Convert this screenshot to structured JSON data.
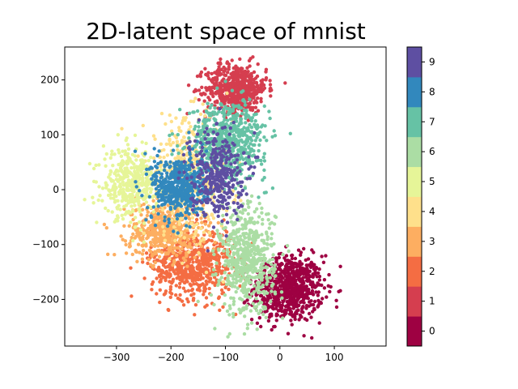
{
  "chart_data": {
    "type": "scatter",
    "title": "2D-latent space of mnist",
    "xlabel": "",
    "ylabel": "",
    "xlim": [
      -395,
      195
    ],
    "ylim": [
      -285,
      260
    ],
    "xticks": [
      -300,
      -200,
      -100,
      0,
      100
    ],
    "yticks": [
      -200,
      -100,
      0,
      100,
      200
    ],
    "grid": false,
    "colorbar": {
      "label": "",
      "ticks": [
        "0",
        "1",
        "2",
        "3",
        "4",
        "5",
        "6",
        "7",
        "8",
        "9"
      ],
      "colors": [
        "#9e0142",
        "#d53e4f",
        "#f46d43",
        "#fdae61",
        "#fee08b",
        "#e6f598",
        "#abdda4",
        "#66c2a5",
        "#3288bd",
        "#5e4fa2"
      ]
    },
    "clusters": [
      {
        "digit": 0,
        "center": [
          15,
          -180
        ],
        "spread": [
          32,
          30
        ],
        "count": 750
      },
      {
        "digit": 1,
        "center": [
          -80,
          185
        ],
        "spread": [
          28,
          22
        ],
        "count": 600
      },
      {
        "digit": 2,
        "center": [
          -160,
          -135
        ],
        "spread": [
          38,
          32
        ],
        "count": 650
      },
      {
        "digit": 3,
        "center": [
          -210,
          -75
        ],
        "spread": [
          35,
          25
        ],
        "count": 500
      },
      {
        "digit": 4,
        "center": [
          -170,
          20
        ],
        "spread": [
          40,
          55
        ],
        "count": 450
      },
      {
        "digit": 5,
        "center": [
          -275,
          10
        ],
        "spread": [
          25,
          30
        ],
        "count": 380
      },
      {
        "digit": 6,
        "center": [
          -60,
          -130
        ],
        "spread": [
          25,
          50
        ],
        "count": 600
      },
      {
        "digit": 7,
        "center": [
          -95,
          90
        ],
        "spread": [
          35,
          35
        ],
        "count": 600
      },
      {
        "digit": 8,
        "center": [
          -185,
          5
        ],
        "spread": [
          25,
          30
        ],
        "count": 480
      },
      {
        "digit": 9,
        "center": [
          -115,
          30
        ],
        "spread": [
          25,
          40
        ],
        "count": 350
      }
    ]
  }
}
